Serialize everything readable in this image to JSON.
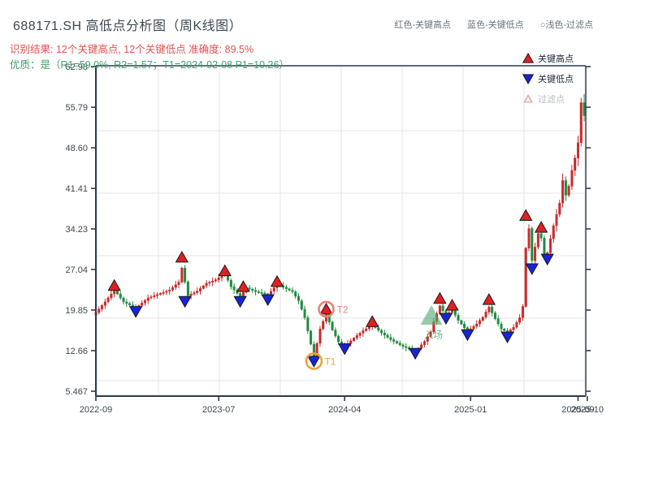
{
  "header": {
    "title": "688171.SH 高低点分析图（周K线图）",
    "top_legend": [
      "红色-关键高点",
      "蓝色-关键低点",
      "○浅色-过滤点"
    ],
    "result_line": "识别结果: 12个关键高点, 12个关键低点  准确度: 89.5%",
    "quality_line": "优质：是（R1=59.0%, R2=1.57；T1=2024-02-08 P1=10.26）"
  },
  "chart_data": {
    "type": "candlestick",
    "symbol": "688171.SH",
    "period": "weekly",
    "title": "688171.SH 高低点分析图（周K线图）",
    "y_axis": {
      "ticks": [
        {
          "label": "62.98",
          "value": 62.98
        },
        {
          "label": "55.79",
          "value": 55.79
        },
        {
          "label": "48.60",
          "value": 48.6
        },
        {
          "label": "41.41",
          "value": 41.41
        },
        {
          "label": "34.23",
          "value": 34.23
        },
        {
          "label": "27.04",
          "value": 27.04
        },
        {
          "label": "19.85",
          "value": 19.85
        },
        {
          "label": "12.66",
          "value": 12.66
        },
        {
          "label": "5.467",
          "value": 5.467
        }
      ],
      "min": 5.467,
      "max": 62.98
    },
    "x_axis": {
      "ticks": [
        {
          "label": "2022-09",
          "week": 0
        },
        {
          "label": "2023-07",
          "week": 40
        },
        {
          "label": "2024-04",
          "week": 81
        },
        {
          "label": "2025-01",
          "week": 122
        },
        {
          "label": "2025-09",
          "week": 157
        }
      ],
      "overlap_end_label": {
        "label": "2025-10",
        "week": 160
      }
    },
    "price_keyframes": [
      [
        0,
        19.4
      ],
      [
        3,
        21.3
      ],
      [
        6,
        23.4
      ],
      [
        9,
        21.3
      ],
      [
        13,
        20.2
      ],
      [
        17,
        22.0
      ],
      [
        21,
        22.8
      ],
      [
        24,
        23.4
      ],
      [
        27,
        24.8
      ],
      [
        28,
        27.3
      ],
      [
        30,
        22.4
      ],
      [
        33,
        23.2
      ],
      [
        36,
        24.6
      ],
      [
        39,
        25.2
      ],
      [
        42,
        26.3
      ],
      [
        44,
        24.0
      ],
      [
        47,
        22.2
      ],
      [
        49,
        23.8
      ],
      [
        52,
        23.1
      ],
      [
        56,
        22.6
      ],
      [
        59,
        24.4
      ],
      [
        61,
        23.9
      ],
      [
        64,
        23.1
      ],
      [
        66,
        21.5
      ],
      [
        68,
        18.5
      ],
      [
        70,
        13.8
      ],
      [
        71,
        11.4
      ],
      [
        73,
        16.5
      ],
      [
        75,
        19.2
      ],
      [
        77,
        16.3
      ],
      [
        79,
        14.2
      ],
      [
        81,
        13.4
      ],
      [
        84,
        14.9
      ],
      [
        87,
        16.2
      ],
      [
        90,
        17.2
      ],
      [
        93,
        15.8
      ],
      [
        96,
        14.6
      ],
      [
        100,
        13.4
      ],
      [
        104,
        12.5
      ],
      [
        107,
        14.3
      ],
      [
        109,
        16.0
      ],
      [
        110,
        17.8
      ],
      [
        112,
        20.6
      ],
      [
        114,
        18.9
      ],
      [
        116,
        19.9
      ],
      [
        118,
        18.0
      ],
      [
        121,
        16.1
      ],
      [
        124,
        17.4
      ],
      [
        126,
        18.6
      ],
      [
        128,
        20.4
      ],
      [
        130,
        18.3
      ],
      [
        132,
        16.5
      ],
      [
        134,
        15.9
      ],
      [
        136,
        16.8
      ],
      [
        138,
        18.5
      ],
      [
        139,
        20.5
      ],
      [
        140,
        30.8
      ],
      [
        141,
        34.3
      ],
      [
        142,
        28.6
      ],
      [
        143,
        31.0
      ],
      [
        144,
        33.4
      ],
      [
        145,
        32.6
      ],
      [
        146,
        29.6
      ],
      [
        147,
        30.0
      ],
      [
        148,
        32.5
      ],
      [
        149,
        34.8
      ],
      [
        150,
        36.8
      ],
      [
        151,
        38.8
      ],
      [
        152,
        42.8
      ],
      [
        153,
        40.2
      ],
      [
        154,
        41.8
      ],
      [
        155,
        44.6
      ],
      [
        156,
        46.8
      ],
      [
        157,
        49.5
      ],
      [
        158,
        56.6
      ],
      [
        159,
        54.3
      ]
    ],
    "key_highs": [
      {
        "week": 6,
        "date": "2022-10",
        "value": 24.2
      },
      {
        "week": 28,
        "date": "2023-03",
        "value": 29.2
      },
      {
        "week": 42,
        "date": "2023-06",
        "value": 26.8
      },
      {
        "week": 48,
        "date": "2023-08",
        "value": 24.0
      },
      {
        "week": 59,
        "date": "2023-10",
        "value": 24.9
      },
      {
        "week": 75,
        "date": "2024-03",
        "value": 20.0
      },
      {
        "week": 90,
        "date": "2024-06",
        "value": 17.8
      },
      {
        "week": 112,
        "date": "2024-11",
        "value": 21.9
      },
      {
        "week": 116,
        "date": "2024-12",
        "value": 20.7
      },
      {
        "week": 128,
        "date": "2025-02",
        "value": 21.7
      },
      {
        "week": 140,
        "date": "2025-05",
        "value": 36.6
      },
      {
        "week": 145,
        "date": "2025-06",
        "value": 34.5
      }
    ],
    "key_lows": [
      {
        "week": 13,
        "date": "2022-12",
        "value": 19.6
      },
      {
        "week": 29,
        "date": "2023-03",
        "value": 21.4
      },
      {
        "week": 47,
        "date": "2023-07",
        "value": 21.4
      },
      {
        "week": 56,
        "date": "2023-09",
        "value": 21.7
      },
      {
        "week": 71,
        "date": "2024-02",
        "value": 10.8
      },
      {
        "week": 81,
        "date": "2024-04",
        "value": 13.0
      },
      {
        "week": 104,
        "date": "2024-09",
        "value": 12.2
      },
      {
        "week": 114,
        "date": "2024-11",
        "value": 18.4
      },
      {
        "week": 121,
        "date": "2025-01",
        "value": 15.5
      },
      {
        "week": 134,
        "date": "2025-03",
        "value": 15.1
      },
      {
        "week": 142,
        "date": "2025-05",
        "value": 27.2
      },
      {
        "week": 147,
        "date": "2025-07",
        "value": 28.9
      }
    ],
    "annotations": {
      "t1": {
        "label": "T1",
        "week": 71,
        "value": 10.8,
        "date": "2024-02-08",
        "price": 10.26,
        "color": "#efa23b"
      },
      "t2": {
        "label": "T2",
        "week": 75,
        "value": 20.0,
        "color": "#e98275"
      },
      "entry": {
        "label": "入场",
        "week": 109,
        "value": 18.8,
        "color": "#4ea971"
      }
    },
    "legend": {
      "items": [
        {
          "label": "关键高点",
          "marker": "red-up-triangle"
        },
        {
          "label": "关键低点",
          "marker": "blue-down-triangle"
        },
        {
          "label": "过滤点",
          "marker": "light-outline-triangle"
        }
      ]
    },
    "colors": {
      "up_candle": "#c92a2a",
      "down_candle": "#218a3f",
      "key_high": "#e02020",
      "key_low": "#1724d8",
      "axis": "#2c3a4e",
      "grid": "#e4e6ea",
      "tick_text": "#3c4752"
    }
  }
}
